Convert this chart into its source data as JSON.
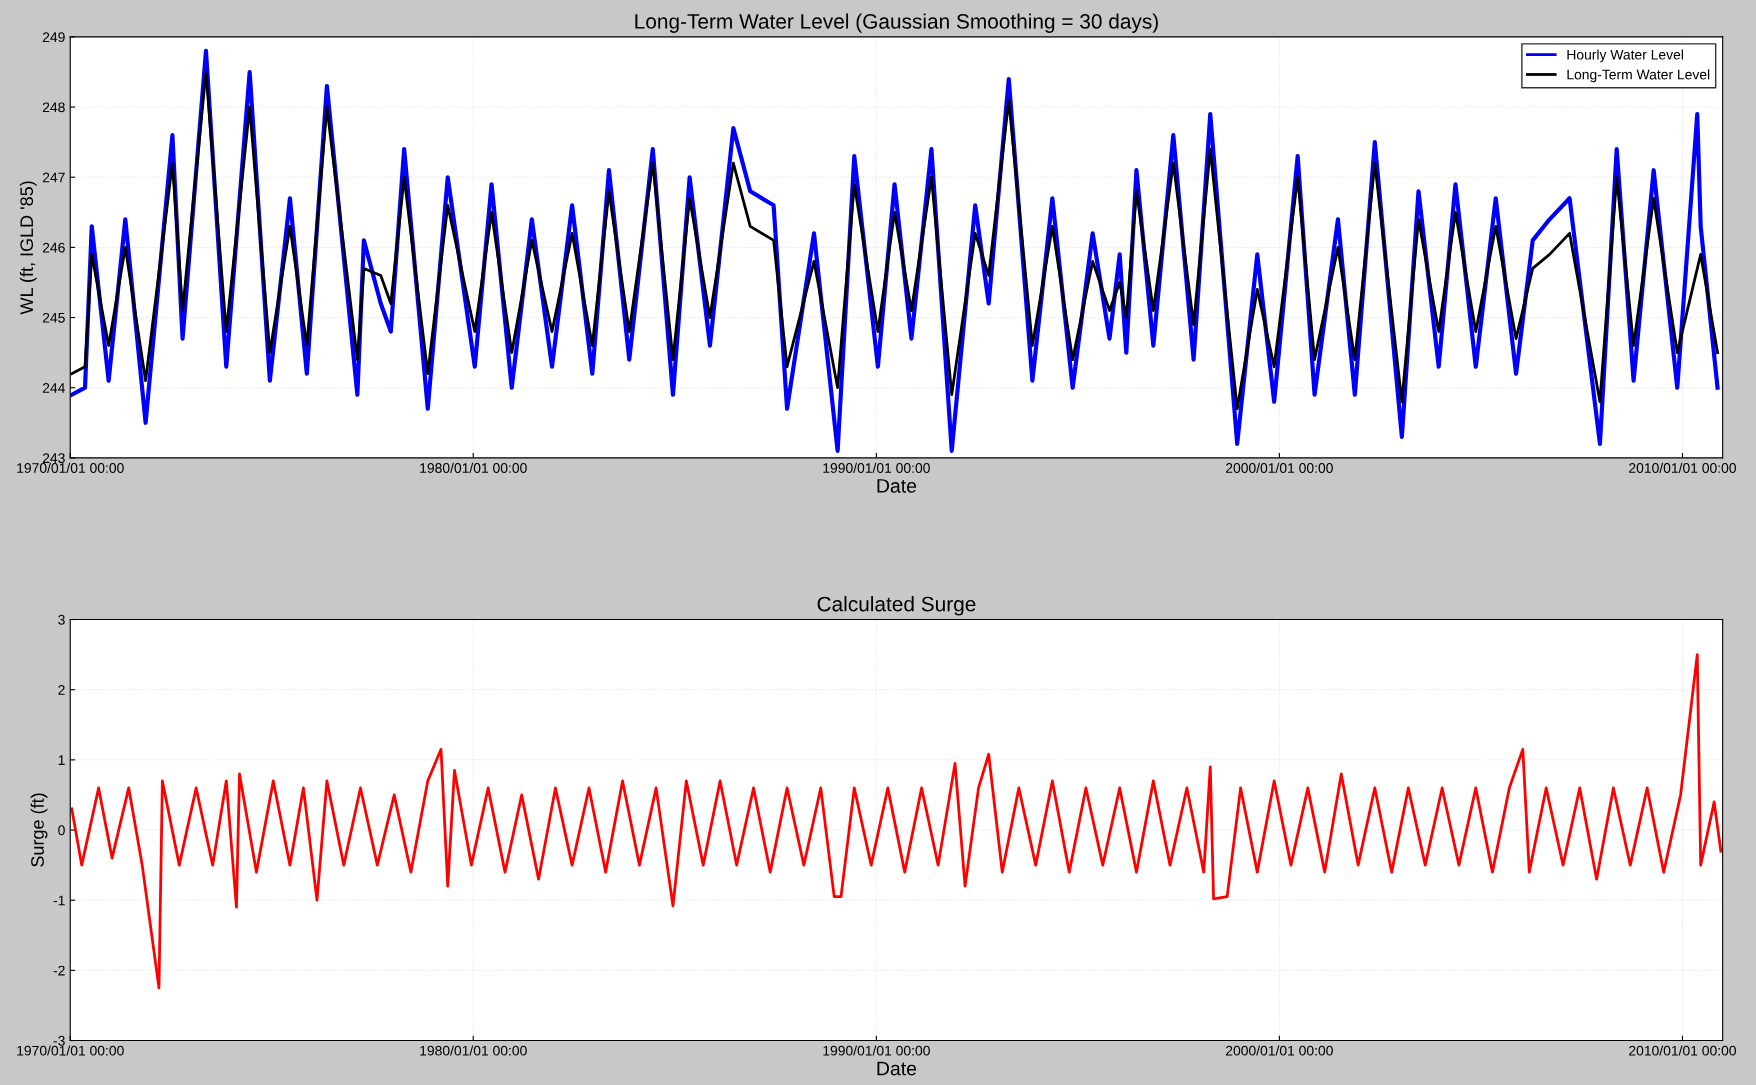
{
  "chart_data": [
    {
      "type": "line",
      "title": "Long-Term Water Level (Gaussian Smoothing = 30 days)",
      "xlabel": "Date",
      "ylabel": "WL (ft, IGLD '85)",
      "xlim": [
        "1970-01-01",
        "2010-12-31"
      ],
      "xticks": [
        {
          "value": "1970-01-01",
          "label": "1970/01/01 00:00"
        },
        {
          "value": "1980-01-01",
          "label": "1980/01/01 00:00"
        },
        {
          "value": "1990-01-01",
          "label": "1990/01/01 00:00"
        },
        {
          "value": "2000-01-01",
          "label": "2000/01/01 00:00"
        },
        {
          "value": "2010-01-01",
          "label": "2010/01/01 00:00"
        }
      ],
      "ylim": [
        243,
        249
      ],
      "yticks": [
        243,
        244,
        245,
        246,
        247,
        248,
        249
      ],
      "grid": true,
      "legend": "top right",
      "series": [
        {
          "name": "Hourly Water Level",
          "color": "#0000ff",
          "x": [
            "1970-01",
            "1970-05",
            "1970-07",
            "1970-12",
            "1971-05",
            "1971-11",
            "1972-07",
            "1972-10",
            "1973-05",
            "1973-11",
            "1974-06",
            "1974-12",
            "1975-06",
            "1975-11",
            "1976-05",
            "1977-02",
            "1977-04",
            "1977-09",
            "1977-12",
            "1978-04",
            "1978-11",
            "1979-05",
            "1980-01",
            "1980-06",
            "1980-12",
            "1981-06",
            "1981-12",
            "1982-06",
            "1982-12",
            "1983-05",
            "1983-11",
            "1984-06",
            "1984-12",
            "1985-05",
            "1985-11",
            "1986-06",
            "1986-11",
            "1987-06",
            "1987-10",
            "1988-06",
            "1989-01",
            "1989-06",
            "1990-01",
            "1990-06",
            "1990-11",
            "1991-05",
            "1991-11",
            "1992-06",
            "1992-10",
            "1993-04",
            "1993-11",
            "1994-05",
            "1994-11",
            "1995-05",
            "1995-10",
            "1996-01",
            "1996-03",
            "1996-06",
            "1996-11",
            "1997-05",
            "1997-11",
            "1998-04",
            "1998-12",
            "1999-06",
            "1999-11",
            "2000-06",
            "2000-11",
            "2001-06",
            "2001-11",
            "2002-05",
            "2003-01",
            "2003-06",
            "2003-12",
            "2004-05",
            "2004-11",
            "2005-05",
            "2005-11",
            "2006-04",
            "2006-09",
            "2007-03",
            "2007-12",
            "2008-05",
            "2008-10",
            "2009-04",
            "2009-11",
            "2010-05",
            "2010-06",
            "2010-11"
          ],
          "values": [
            243.9,
            244.0,
            246.3,
            244.1,
            246.4,
            243.5,
            247.6,
            244.7,
            248.8,
            244.3,
            248.5,
            244.1,
            246.7,
            244.2,
            248.3,
            243.9,
            246.1,
            245.2,
            244.8,
            247.4,
            243.7,
            247.0,
            244.3,
            246.9,
            244.0,
            246.4,
            244.3,
            246.6,
            244.2,
            247.1,
            244.4,
            247.4,
            243.9,
            247.0,
            244.6,
            247.7,
            246.8,
            246.6,
            243.7,
            246.2,
            243.1,
            247.3,
            244.3,
            246.9,
            244.7,
            247.4,
            243.1,
            246.6,
            245.2,
            248.4,
            244.1,
            246.7,
            244.0,
            246.2,
            244.7,
            245.9,
            244.5,
            247.1,
            244.6,
            247.6,
            244.4,
            247.9,
            243.2,
            245.9,
            243.8,
            247.3,
            243.9,
            246.4,
            243.9,
            247.5,
            243.3,
            246.8,
            244.3,
            246.9,
            244.3,
            246.7,
            244.2,
            246.1,
            246.4,
            246.7,
            243.2,
            247.4,
            244.1,
            247.1,
            244.0,
            247.9,
            246.3,
            244.0
          ]
        },
        {
          "name": "Long-Term Water Level",
          "color": "#000000",
          "x": [
            "1970-01",
            "1970-05",
            "1970-07",
            "1970-12",
            "1971-05",
            "1971-11",
            "1972-07",
            "1972-10",
            "1973-05",
            "1973-11",
            "1974-06",
            "1974-12",
            "1975-06",
            "1975-11",
            "1976-05",
            "1977-02",
            "1977-04",
            "1977-09",
            "1977-12",
            "1978-04",
            "1978-11",
            "1979-05",
            "1980-01",
            "1980-06",
            "1980-12",
            "1981-06",
            "1981-12",
            "1982-06",
            "1982-12",
            "1983-05",
            "1983-11",
            "1984-06",
            "1984-12",
            "1985-05",
            "1985-11",
            "1986-06",
            "1986-11",
            "1987-06",
            "1987-10",
            "1988-06",
            "1989-01",
            "1989-06",
            "1990-01",
            "1990-06",
            "1990-11",
            "1991-05",
            "1991-11",
            "1992-06",
            "1992-10",
            "1993-04",
            "1993-11",
            "1994-05",
            "1994-11",
            "1995-05",
            "1995-10",
            "1996-01",
            "1996-03",
            "1996-06",
            "1996-11",
            "1997-05",
            "1997-11",
            "1998-04",
            "1998-12",
            "1999-06",
            "1999-11",
            "2000-06",
            "2000-11",
            "2001-06",
            "2001-11",
            "2002-05",
            "2003-01",
            "2003-06",
            "2003-12",
            "2004-05",
            "2004-11",
            "2005-05",
            "2005-11",
            "2006-04",
            "2006-09",
            "2007-03",
            "2007-12",
            "2008-05",
            "2008-10",
            "2009-04",
            "2009-11",
            "2010-06",
            "2010-11"
          ],
          "values": [
            244.2,
            244.3,
            245.9,
            244.6,
            246.0,
            244.1,
            247.2,
            245.1,
            248.5,
            244.8,
            248.0,
            244.5,
            246.3,
            244.6,
            248.0,
            244.4,
            245.7,
            245.6,
            245.2,
            247.0,
            244.2,
            246.6,
            244.8,
            246.5,
            244.5,
            246.1,
            244.8,
            246.2,
            244.6,
            246.8,
            244.8,
            247.2,
            244.4,
            246.7,
            245.0,
            247.2,
            246.3,
            246.1,
            244.3,
            245.8,
            244.0,
            246.9,
            244.8,
            246.5,
            245.1,
            247.0,
            243.9,
            246.2,
            245.6,
            248.1,
            244.6,
            246.3,
            244.4,
            245.8,
            245.1,
            245.5,
            245.0,
            246.8,
            245.1,
            247.2,
            244.9,
            247.4,
            243.7,
            245.4,
            244.3,
            247.0,
            244.4,
            246.0,
            244.4,
            247.2,
            243.8,
            246.4,
            244.8,
            246.5,
            244.8,
            246.3,
            244.7,
            245.7,
            245.9,
            246.2,
            243.8,
            247.0,
            244.6,
            246.7,
            244.5,
            245.9,
            244.5
          ]
        }
      ]
    },
    {
      "type": "line",
      "title": "Calculated Surge",
      "xlabel": "Date",
      "ylabel": "Surge (ft)",
      "xlim": [
        "1970-01-01",
        "2010-12-31"
      ],
      "xticks": [
        {
          "value": "1970-01-01",
          "label": "1970/01/01 00:00"
        },
        {
          "value": "1980-01-01",
          "label": "1980/01/01 00:00"
        },
        {
          "value": "1990-01-01",
          "label": "1990/01/01 00:00"
        },
        {
          "value": "2000-01-01",
          "label": "2000/01/01 00:00"
        },
        {
          "value": "2010-01-01",
          "label": "2010/01/01 00:00"
        }
      ],
      "ylim": [
        -3,
        3
      ],
      "yticks": [
        -3,
        -2,
        -1,
        0,
        1,
        2,
        3
      ],
      "grid": true,
      "series": [
        {
          "color": "#ff0000",
          "x": [
            "1970-01",
            "1970-04",
            "1970-09",
            "1971-01",
            "1971-06",
            "1971-10",
            "1972-03",
            "1972-04",
            "1972-09",
            "1973-02",
            "1973-07",
            "1973-11",
            "1974-02",
            "1974-03",
            "1974-08",
            "1975-01",
            "1975-06",
            "1975-10",
            "1976-02",
            "1976-05",
            "1976-10",
            "1977-03",
            "1977-08",
            "1978-01",
            "1978-06",
            "1978-11",
            "1979-03",
            "1979-05",
            "1979-07",
            "1979-12",
            "1980-05",
            "1980-10",
            "1981-03",
            "1981-08",
            "1982-01",
            "1982-06",
            "1982-11",
            "1983-04",
            "1983-09",
            "1984-02",
            "1984-07",
            "1984-12",
            "1985-04",
            "1985-09",
            "1986-02",
            "1986-07",
            "1986-12",
            "1987-05",
            "1987-10",
            "1988-03",
            "1988-08",
            "1988-12",
            "1989-02",
            "1989-06",
            "1989-11",
            "1990-04",
            "1990-09",
            "1991-02",
            "1991-07",
            "1991-12",
            "1992-03",
            "1992-07",
            "1992-10",
            "1993-02",
            "1993-07",
            "1993-12",
            "1994-05",
            "1994-10",
            "1995-03",
            "1995-08",
            "1996-01",
            "1996-06",
            "1996-11",
            "1997-04",
            "1997-09",
            "1998-02",
            "1998-04",
            "1998-05",
            "1998-09",
            "1999-01",
            "1999-06",
            "1999-11",
            "2000-04",
            "2000-09",
            "2001-02",
            "2001-07",
            "2001-12",
            "2002-05",
            "2002-10",
            "2003-03",
            "2003-08",
            "2004-01",
            "2004-06",
            "2004-11",
            "2005-04",
            "2005-09",
            "2006-01",
            "2006-03",
            "2006-08",
            "2007-01",
            "2007-06",
            "2007-11",
            "2008-04",
            "2008-09",
            "2009-02",
            "2009-07",
            "2009-12",
            "2010-05",
            "2010-06",
            "2010-10",
            "2010-12"
          ],
          "values": [
            0.3,
            -0.5,
            0.6,
            -0.4,
            0.6,
            -0.5,
            -2.25,
            0.7,
            -0.5,
            0.6,
            -0.5,
            0.7,
            -1.1,
            0.8,
            -0.6,
            0.7,
            -0.5,
            0.6,
            -1.0,
            0.7,
            -0.5,
            0.6,
            -0.5,
            0.5,
            -0.6,
            0.7,
            1.15,
            -0.8,
            0.85,
            -0.5,
            0.6,
            -0.6,
            0.5,
            -0.7,
            0.6,
            -0.5,
            0.6,
            -0.6,
            0.7,
            -0.5,
            0.6,
            -1.08,
            0.7,
            -0.5,
            0.7,
            -0.5,
            0.6,
            -0.6,
            0.6,
            -0.5,
            0.6,
            -0.95,
            -0.95,
            0.6,
            -0.5,
            0.6,
            -0.6,
            0.6,
            -0.5,
            0.95,
            -0.8,
            0.6,
            1.08,
            -0.6,
            0.6,
            -0.5,
            0.7,
            -0.6,
            0.6,
            -0.5,
            0.6,
            -0.6,
            0.7,
            -0.5,
            0.6,
            -0.6,
            0.9,
            -0.98,
            -0.95,
            0.6,
            -0.6,
            0.7,
            -0.5,
            0.6,
            -0.6,
            0.8,
            -0.5,
            0.6,
            -0.6,
            0.6,
            -0.5,
            0.6,
            -0.5,
            0.6,
            -0.6,
            0.6,
            1.15,
            -0.6,
            0.6,
            -0.5,
            0.6,
            -0.7,
            0.6,
            -0.5,
            0.6,
            -0.6,
            0.5,
            2.5,
            -0.5,
            0.4,
            -0.3
          ]
        }
      ]
    }
  ]
}
